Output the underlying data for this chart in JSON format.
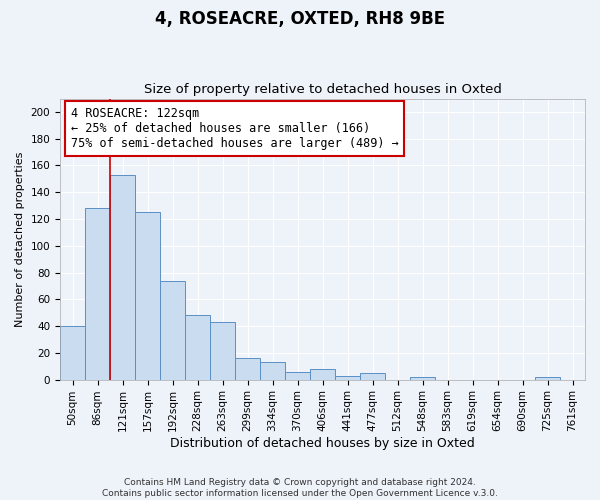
{
  "title": "4, ROSEACRE, OXTED, RH8 9BE",
  "subtitle": "Size of property relative to detached houses in Oxted",
  "xlabel": "Distribution of detached houses by size in Oxted",
  "ylabel": "Number of detached properties",
  "bar_labels": [
    "50sqm",
    "86sqm",
    "121sqm",
    "157sqm",
    "192sqm",
    "228sqm",
    "263sqm",
    "299sqm",
    "334sqm",
    "370sqm",
    "406sqm",
    "441sqm",
    "477sqm",
    "512sqm",
    "548sqm",
    "583sqm",
    "619sqm",
    "654sqm",
    "690sqm",
    "725sqm",
    "761sqm"
  ],
  "bar_values": [
    40,
    128,
    153,
    125,
    74,
    48,
    43,
    16,
    13,
    6,
    8,
    3,
    5,
    0,
    2,
    0,
    0,
    0,
    0,
    2,
    0
  ],
  "bar_color": "#c9dcf0",
  "bar_edgecolor": "#5b8fc4",
  "ylim": [
    0,
    210
  ],
  "yticks": [
    0,
    20,
    40,
    60,
    80,
    100,
    120,
    140,
    160,
    180,
    200
  ],
  "vline_x_index": 2,
  "vline_color": "#cc0000",
  "annotation_title": "4 ROSEACRE: 122sqm",
  "annotation_line1": "← 25% of detached houses are smaller (166)",
  "annotation_line2": "75% of semi-detached houses are larger (489) →",
  "annotation_box_edgecolor": "#cc0000",
  "footer_line1": "Contains HM Land Registry data © Crown copyright and database right 2024.",
  "footer_line2": "Contains public sector information licensed under the Open Government Licence v.3.0.",
  "background_color": "#eef2f9",
  "grid_color": "#ffffff",
  "title_fontsize": 12,
  "subtitle_fontsize": 9.5,
  "xlabel_fontsize": 9,
  "ylabel_fontsize": 8,
  "tick_fontsize": 7.5,
  "annotation_fontsize": 8.5,
  "footer_fontsize": 6.5
}
